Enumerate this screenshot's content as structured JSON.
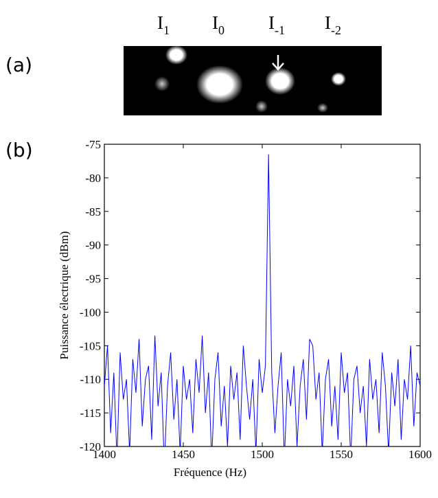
{
  "panels": [
    "(a)",
    "(b)"
  ],
  "orders": [
    {
      "letter": "I",
      "subscript": "1"
    },
    {
      "letter": "I",
      "subscript": "0"
    },
    {
      "letter": "I",
      "subscript": "-1"
    },
    {
      "letter": "I",
      "subscript": "-2"
    }
  ],
  "chart_data": {
    "type": "line",
    "xlabel": "Fréquence (Hz)",
    "ylabel": "Puissance électrique (dBm)",
    "xlim": [
      1400,
      1600
    ],
    "ylim": [
      -120,
      -75
    ],
    "xticks": [
      1400,
      1450,
      1500,
      1550,
      1600
    ],
    "yticks": [
      -120,
      -115,
      -110,
      -105,
      -100,
      -95,
      -90,
      -85,
      -80,
      -75
    ],
    "x": [
      1400,
      1402,
      1404,
      1406,
      1408,
      1410,
      1412,
      1414,
      1416,
      1418,
      1420,
      1422,
      1424,
      1426,
      1428,
      1430,
      1432,
      1434,
      1436,
      1438,
      1440,
      1442,
      1444,
      1446,
      1448,
      1450,
      1452,
      1454,
      1456,
      1458,
      1460,
      1462,
      1464,
      1466,
      1468,
      1470,
      1472,
      1474,
      1476,
      1478,
      1480,
      1482,
      1484,
      1486,
      1488,
      1490,
      1492,
      1494,
      1496,
      1498,
      1500,
      1502,
      1504,
      1506,
      1508,
      1510,
      1512,
      1514,
      1516,
      1518,
      1520,
      1522,
      1524,
      1526,
      1528,
      1530,
      1532,
      1534,
      1536,
      1538,
      1540,
      1542,
      1544,
      1546,
      1548,
      1550,
      1552,
      1554,
      1556,
      1558,
      1560,
      1562,
      1564,
      1566,
      1568,
      1570,
      1572,
      1574,
      1576,
      1578,
      1580,
      1582,
      1584,
      1586,
      1588,
      1590,
      1592,
      1594,
      1596,
      1598,
      1600
    ],
    "series": [
      {
        "color": "#0000ff",
        "values": [
          -111,
          -105,
          -118,
          -109,
          -122,
          -106,
          -113,
          -110,
          -121,
          -107,
          -112,
          -104,
          -117,
          -110,
          -108,
          -119,
          -103.5,
          -114,
          -109,
          -123,
          -111,
          -106,
          -116,
          -110,
          -121,
          -108,
          -113,
          -110,
          -118,
          -107,
          -112,
          -103.5,
          -115,
          -109,
          -122,
          -110,
          -106,
          -117,
          -111,
          -120,
          -108,
          -113,
          -109,
          -119,
          -105,
          -111,
          -116,
          -110,
          -121,
          -107,
          -112,
          -108,
          -76.5,
          -109,
          -118,
          -111,
          -106,
          -122,
          -110,
          -114,
          -108,
          -120,
          -111,
          -107,
          -116,
          -104,
          -105,
          -113,
          -109,
          -121,
          -110,
          -107,
          -117,
          -111,
          -119,
          -106,
          -112,
          -109,
          -122,
          -110,
          -108,
          -115,
          -111,
          -120,
          -107,
          -113,
          -110,
          -118,
          -106,
          -111,
          -121,
          -109,
          -114,
          -107,
          -119,
          -110,
          -113,
          -105,
          -117,
          -109,
          -111
        ]
      }
    ]
  }
}
